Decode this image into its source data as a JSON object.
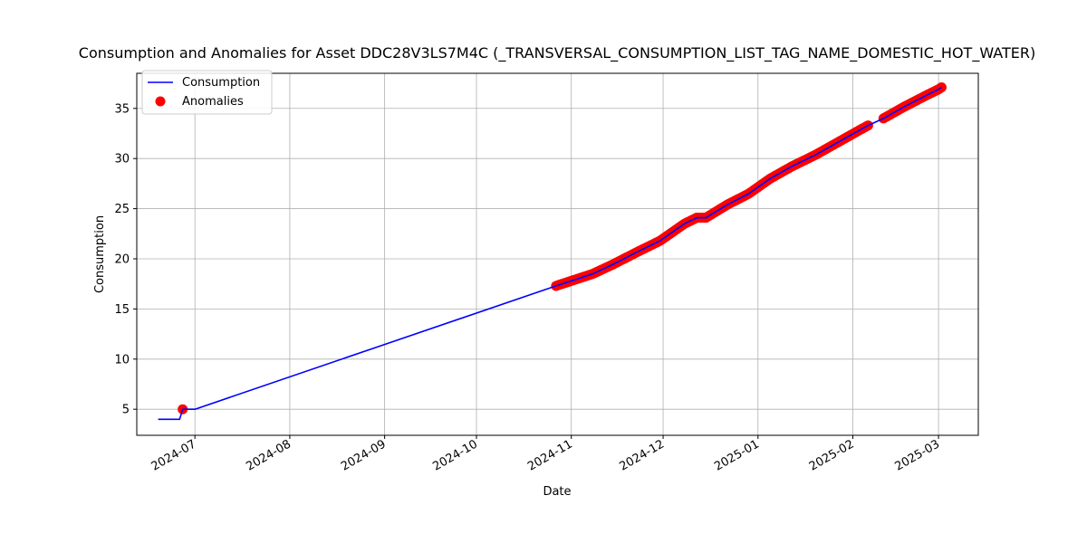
{
  "chart_data": {
    "type": "line",
    "title": "Consumption and Anomalies for Asset DDC28V3LS7M4C (_TRANSVERSAL_CONSUMPTION_LIST_TAG_NAME_DOMESTIC_HOT_WATER)",
    "xlabel": "Date",
    "ylabel": "Consumption",
    "x_type": "date",
    "xlim": [
      "2024-06-12",
      "2025-03-14"
    ],
    "ylim": [
      2.4,
      38.5
    ],
    "x_ticks": [
      "2024-07-01",
      "2024-08-01",
      "2024-09-01",
      "2024-10-01",
      "2024-11-01",
      "2024-12-01",
      "2025-01-01",
      "2025-02-01",
      "2025-03-01"
    ],
    "x_tick_labels": [
      "2024-07",
      "2024-08",
      "2024-09",
      "2024-10",
      "2024-11",
      "2024-12",
      "2025-01",
      "2025-02",
      "2025-03"
    ],
    "y_ticks": [
      5,
      10,
      15,
      20,
      25,
      30,
      35
    ],
    "y_tick_labels": [
      "5",
      "10",
      "15",
      "20",
      "25",
      "30",
      "35"
    ],
    "grid": true,
    "legend_position": "top-left",
    "series": [
      {
        "name": "Consumption",
        "kind": "line",
        "color": "#0000ff",
        "points": [
          [
            "2024-06-19",
            4.0
          ],
          [
            "2024-06-26",
            4.0
          ],
          [
            "2024-06-27",
            5.0
          ],
          [
            "2024-07-01",
            5.0
          ],
          [
            "2024-10-28",
            17.4
          ],
          [
            "2024-11-01",
            17.8
          ],
          [
            "2024-11-08",
            18.5
          ],
          [
            "2024-11-15",
            19.5
          ],
          [
            "2024-11-22",
            20.6
          ],
          [
            "2024-11-30",
            21.8
          ],
          [
            "2024-12-08",
            23.5
          ],
          [
            "2024-12-12",
            24.1
          ],
          [
            "2024-12-15",
            24.1
          ],
          [
            "2024-12-22",
            25.4
          ],
          [
            "2024-12-29",
            26.5
          ],
          [
            "2025-01-05",
            28.0
          ],
          [
            "2025-01-12",
            29.2
          ],
          [
            "2025-01-20",
            30.4
          ],
          [
            "2025-01-27",
            31.6
          ],
          [
            "2025-02-03",
            32.8
          ],
          [
            "2025-02-06",
            33.3
          ],
          [
            "2025-02-11",
            34.0
          ],
          [
            "2025-02-18",
            35.2
          ],
          [
            "2025-02-25",
            36.3
          ],
          [
            "2025-03-01",
            36.9
          ],
          [
            "2025-03-02",
            37.1
          ]
        ]
      },
      {
        "name": "Anomalies",
        "kind": "scatter",
        "color": "#ff0000",
        "ranges": [
          [
            "2024-10-27",
            "2025-02-06"
          ],
          [
            "2025-02-11",
            "2025-03-02"
          ]
        ],
        "points": [
          [
            "2024-06-27",
            5.0
          ]
        ]
      }
    ]
  }
}
